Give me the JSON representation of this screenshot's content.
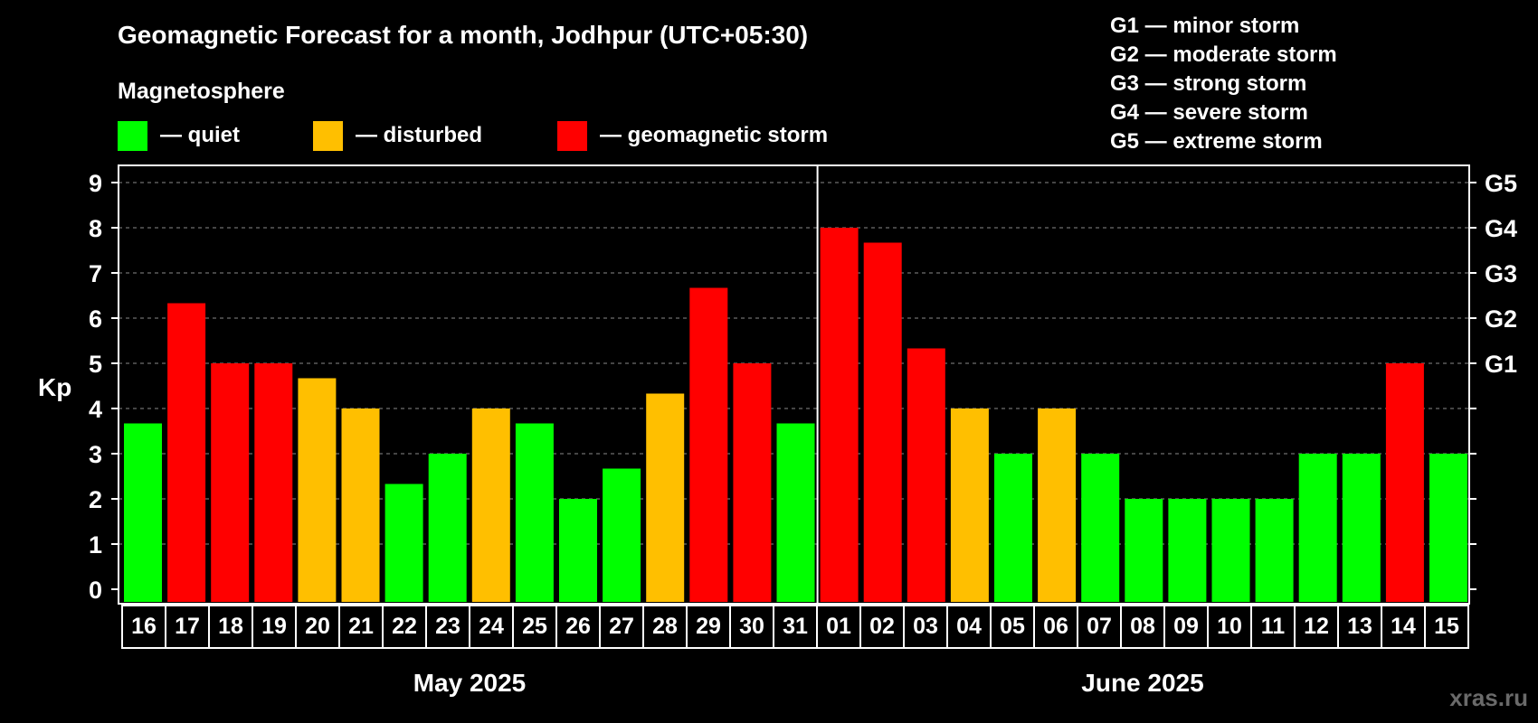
{
  "chart_data": {
    "type": "bar",
    "title": "Geomagnetic Forecast for a month, Jodhpur (UTC+05:30)",
    "legend_heading": "Magnetosphere",
    "legend": [
      {
        "key": "quiet",
        "label": "— quiet",
        "color": "#00ff00"
      },
      {
        "key": "disturbed",
        "label": "— disturbed",
        "color": "#ffbf00"
      },
      {
        "key": "storm",
        "label": "— geomagnetic storm",
        "color": "#ff0000"
      }
    ],
    "storm_scale": [
      "G1 — minor storm",
      "G2 — moderate storm",
      "G3 — strong storm",
      "G4 — severe storm",
      "G5 — extreme storm"
    ],
    "ylabel": "Kp",
    "ylim": [
      0,
      9
    ],
    "yticks": [
      "0",
      "1",
      "2",
      "3",
      "4",
      "5",
      "6",
      "7",
      "8",
      "9"
    ],
    "right_ticks": [
      {
        "value": 5,
        "label": "G1"
      },
      {
        "value": 6,
        "label": "G2"
      },
      {
        "value": 7,
        "label": "G3"
      },
      {
        "value": 8,
        "label": "G4"
      },
      {
        "value": 9,
        "label": "G5"
      }
    ],
    "categories": [
      "16",
      "17",
      "18",
      "19",
      "20",
      "21",
      "22",
      "23",
      "24",
      "25",
      "26",
      "27",
      "28",
      "29",
      "30",
      "31",
      "01",
      "02",
      "03",
      "04",
      "05",
      "06",
      "07",
      "08",
      "09",
      "10",
      "11",
      "12",
      "13",
      "14",
      "15"
    ],
    "values": [
      3.67,
      6.33,
      5,
      5,
      4.67,
      4,
      2.33,
      3,
      4,
      3.67,
      2,
      2.67,
      4.33,
      6.67,
      5,
      3.67,
      8,
      7.67,
      5.33,
      4,
      3,
      4,
      3,
      2,
      2,
      2,
      2,
      3,
      3,
      5,
      3
    ],
    "levels": [
      "quiet",
      "storm",
      "storm",
      "storm",
      "disturbed",
      "disturbed",
      "quiet",
      "quiet",
      "disturbed",
      "quiet",
      "quiet",
      "quiet",
      "disturbed",
      "storm",
      "storm",
      "quiet",
      "storm",
      "storm",
      "storm",
      "disturbed",
      "quiet",
      "disturbed",
      "quiet",
      "quiet",
      "quiet",
      "quiet",
      "quiet",
      "quiet",
      "quiet",
      "storm",
      "quiet"
    ],
    "months": [
      {
        "label": "May 2025",
        "start": 0,
        "count": 16
      },
      {
        "label": "June 2025",
        "start": 16,
        "count": 15
      }
    ]
  },
  "watermark": "xras.ru"
}
